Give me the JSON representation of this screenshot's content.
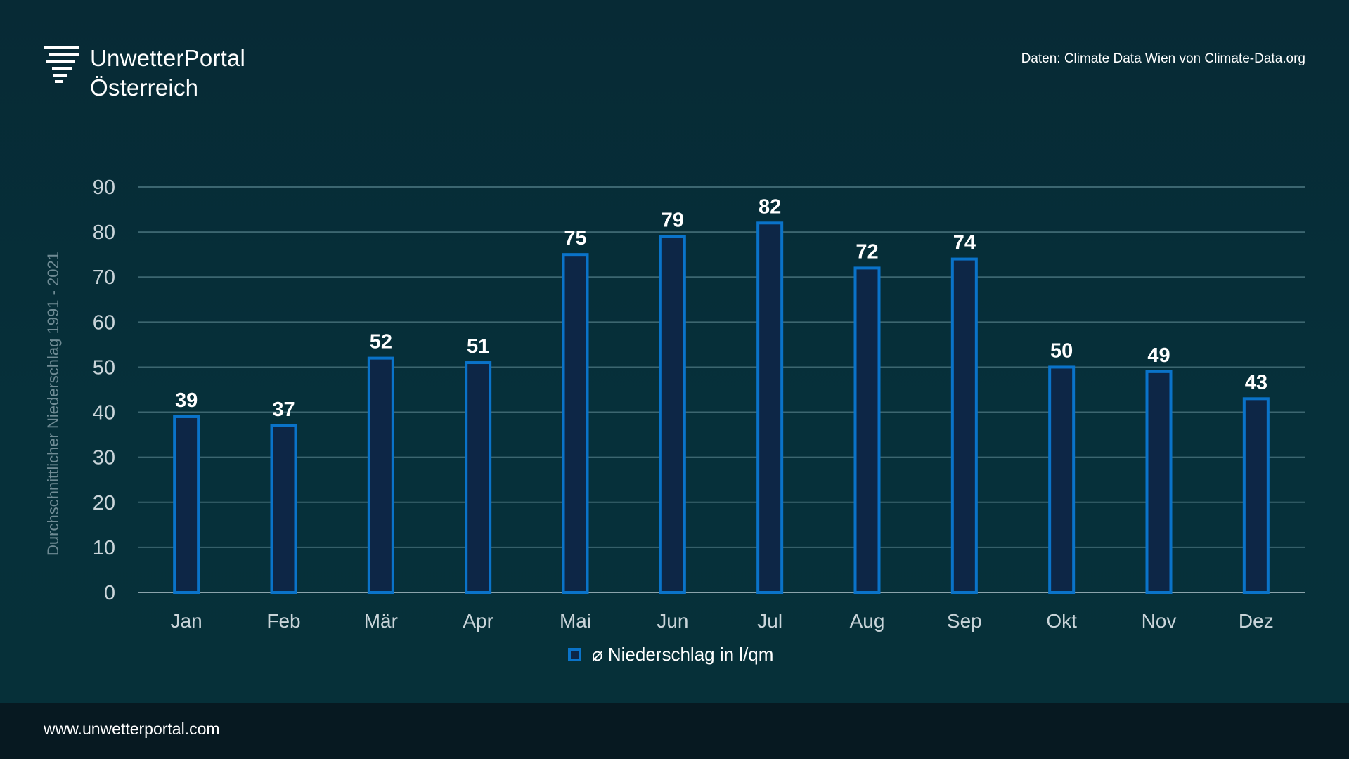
{
  "header": {
    "brand_line1": "UnwetterPortal",
    "brand_line2": "Österreich",
    "source": "Daten: Climate Data Wien von Climate-Data.org"
  },
  "footer": {
    "url": "www.unwetterportal.com"
  },
  "colors": {
    "background": "#062f38",
    "footer": "#071921",
    "bar_fill": "#0d2646",
    "bar_stroke": "#0a73c9",
    "grid": "#3c6670",
    "axis_text": "#c9d4d9",
    "ylabel_text": "#6f8b94"
  },
  "icons": {
    "logo": "weather-lines-icon"
  },
  "chart_data": {
    "type": "bar",
    "categories": [
      "Jan",
      "Feb",
      "Mär",
      "Apr",
      "Mai",
      "Jun",
      "Jul",
      "Aug",
      "Sep",
      "Okt",
      "Nov",
      "Dez"
    ],
    "series": [
      {
        "name": "⌀ Niederschlag in l/qm",
        "values": [
          39,
          37,
          52,
          51,
          75,
          79,
          82,
          72,
          74,
          50,
          49,
          43
        ]
      }
    ],
    "ylabel": "Durchschnittlicher Niederschlag 1991 - 2021",
    "xlabel": "",
    "ylim": [
      0,
      90
    ],
    "yticks": [
      0,
      10,
      20,
      30,
      40,
      50,
      60,
      70,
      80,
      90
    ],
    "grid": true,
    "legend_position": "bottom-center",
    "data_labels": true
  }
}
